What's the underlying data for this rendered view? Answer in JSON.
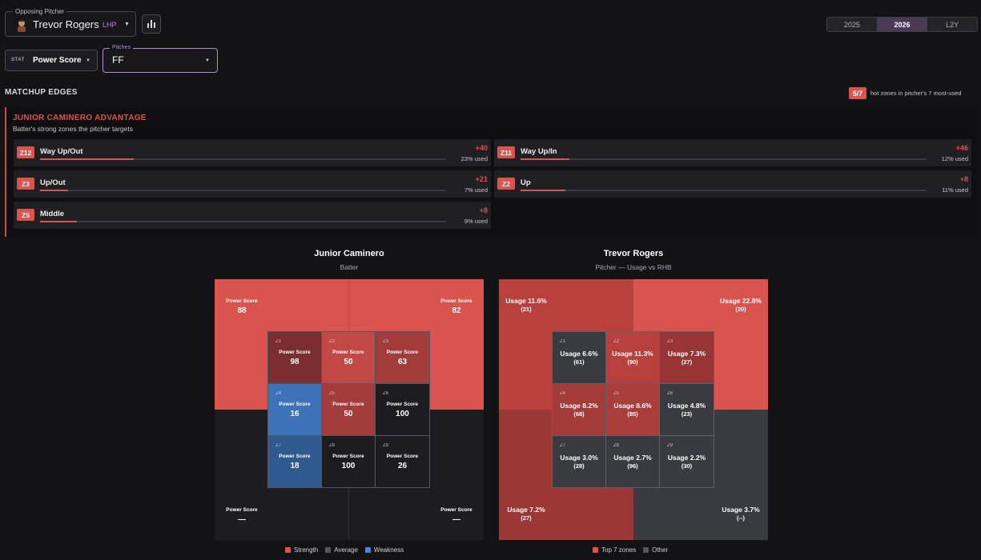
{
  "opposing_pitcher": {
    "legend": "Opposing Pitcher",
    "name": "Trevor Rogers",
    "hand": "LHP",
    "caret": "▼"
  },
  "season_tabs": [
    {
      "label": "2025",
      "active": false
    },
    {
      "label": "2026",
      "active": true
    },
    {
      "label": "L2Y",
      "active": false
    }
  ],
  "stat_select": {
    "tag": "STAT",
    "value": "Power Score",
    "caret": "▼"
  },
  "pitch_select": {
    "legend": "Pitches",
    "value": "FF",
    "caret": "▼"
  },
  "matchup_edges": {
    "title": "MATCHUP EDGES",
    "hot_badge": "5/7",
    "hot_text": "hot zones in pitcher's 7 most-used",
    "advantage_title": "JUNIOR CAMINERO ADVANTAGE",
    "advantage_subtitle": "Batter's strong zones the pitcher targets",
    "edges": [
      {
        "zone": "Z12",
        "name": "Way Up/Out",
        "delta": "+40",
        "used": "23% used",
        "usage_pct": 23
      },
      {
        "zone": "Z11",
        "name": "Way Up/In",
        "delta": "+46",
        "used": "12% used",
        "usage_pct": 12
      },
      {
        "zone": "Z3",
        "name": "Up/Out",
        "delta": "+21",
        "used": "7% used",
        "usage_pct": 7
      },
      {
        "zone": "Z2",
        "name": "Up",
        "delta": "+8",
        "used": "11% used",
        "usage_pct": 11
      },
      {
        "zone": "Z5",
        "name": "Middle",
        "delta": "+8",
        "used": "9% used",
        "usage_pct": 9
      }
    ]
  },
  "batter_panel": {
    "title": "Junior Caminero",
    "subtitle": "Batter",
    "outer": [
      {
        "label": "Power Score",
        "value": "88"
      },
      {
        "label": "Power Score",
        "value": "82"
      },
      {
        "label": "Power Score",
        "value": "—"
      },
      {
        "label": "Power Score",
        "value": "—"
      }
    ],
    "cells": [
      {
        "zone": "Z1",
        "label": "Power Score",
        "value": "98"
      },
      {
        "zone": "Z2",
        "label": "Power Score",
        "value": "50"
      },
      {
        "zone": "Z3",
        "label": "Power Score",
        "value": "63"
      },
      {
        "zone": "Z4",
        "label": "Power Score",
        "value": "16"
      },
      {
        "zone": "Z5",
        "label": "Power Score",
        "value": "50"
      },
      {
        "zone": "Z6",
        "label": "Power Score",
        "value": "100"
      },
      {
        "zone": "Z7",
        "label": "Power Score",
        "value": "18"
      },
      {
        "zone": "Z8",
        "label": "Power Score",
        "value": "100"
      },
      {
        "zone": "Z9",
        "label": "Power Score",
        "value": "26"
      }
    ],
    "legend": [
      "Strength",
      "Average",
      "Weakness"
    ]
  },
  "pitcher_panel": {
    "title": "Trevor Rogers",
    "subtitle": "Pitcher — Usage vs RHB",
    "outer": [
      {
        "usage": "Usage 11.6%",
        "count": "(21)"
      },
      {
        "usage": "Usage 22.8%",
        "count": "(20)"
      },
      {
        "usage": "Usage 7.2%",
        "count": "(27)"
      },
      {
        "usage": "Usage 3.7%",
        "count": "(--)"
      }
    ],
    "cells": [
      {
        "zone": "Z1",
        "usage": "Usage 6.6%",
        "count": "(61)"
      },
      {
        "zone": "Z2",
        "usage": "Usage 11.3%",
        "count": "(90)"
      },
      {
        "zone": "Z3",
        "usage": "Usage 7.3%",
        "count": "(27)"
      },
      {
        "zone": "Z4",
        "usage": "Usage 8.2%",
        "count": "(68)"
      },
      {
        "zone": "Z5",
        "usage": "Usage 8.6%",
        "count": "(85)"
      },
      {
        "zone": "Z6",
        "usage": "Usage 4.8%",
        "count": "(23)"
      },
      {
        "zone": "Z7",
        "usage": "Usage 3.0%",
        "count": "(28)"
      },
      {
        "zone": "Z8",
        "usage": "Usage 2.7%",
        "count": "(96)"
      },
      {
        "zone": "Z9",
        "usage": "Usage 2.2%",
        "count": "(30)"
      }
    ],
    "legend": [
      "Top 7 zones",
      "Other"
    ]
  },
  "colors": {
    "accent_purple": "#b58bd6",
    "strength": "#d9534f",
    "strength_dark": "#7a2e2e",
    "strength_mid": "#a23d3b",
    "average": "#4a4a52",
    "weakness": "#3d72b8",
    "cold_cell": "#1c1c21",
    "top_zone": "#b8403d",
    "other_zone": "#3a3b40"
  }
}
